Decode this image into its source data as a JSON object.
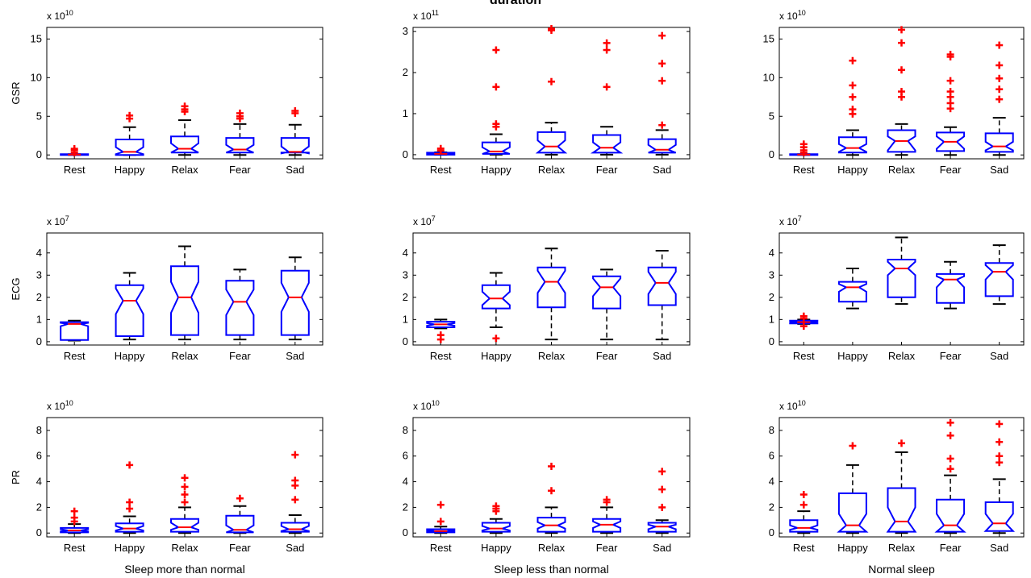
{
  "figure": {
    "title": "duration"
  },
  "chart_data": [
    {
      "type": "box",
      "panel_row": 0,
      "panel_col": 0,
      "ylabel": "GSR",
      "multiplier": "x 10",
      "exponent": "10",
      "ylim": [
        -0.5,
        16.5
      ],
      "yticks": [
        0,
        5,
        10,
        15
      ],
      "categories": [
        "Rest",
        "Happy",
        "Relax",
        "Fear",
        "Sad"
      ],
      "boxes": [
        {
          "q1": 0,
          "median": 0.05,
          "q3": 0.1,
          "n_lo": 0.02,
          "n_hi": 0.08,
          "whisker_low": 0,
          "whisker_high": 0.1,
          "outliers": [
            0.3,
            0.6,
            0.8
          ]
        },
        {
          "q1": 0,
          "median": 0.4,
          "q3": 2.0,
          "n_lo": 0.1,
          "n_hi": 1.0,
          "whisker_low": 0,
          "whisker_high": 3.6,
          "outliers": [
            4.7,
            5.1
          ]
        },
        {
          "q1": 0.3,
          "median": 0.8,
          "q3": 2.4,
          "n_lo": 0.3,
          "n_hi": 1.5,
          "whisker_low": 0,
          "whisker_high": 4.5,
          "outliers": [
            5.6,
            5.9,
            6.3
          ]
        },
        {
          "q1": 0.3,
          "median": 0.7,
          "q3": 2.2,
          "n_lo": 0.3,
          "n_hi": 1.3,
          "whisker_low": 0,
          "whisker_high": 4.0,
          "outliers": [
            4.7,
            5.0,
            5.4
          ]
        },
        {
          "q1": 0.3,
          "median": 0.4,
          "q3": 2.2,
          "n_lo": 0.2,
          "n_hi": 1.1,
          "whisker_low": 0,
          "whisker_high": 3.9,
          "outliers": [
            5.4,
            5.7
          ]
        }
      ]
    },
    {
      "type": "box",
      "panel_row": 0,
      "panel_col": 1,
      "ylabel": "",
      "multiplier": "x 10",
      "exponent": "11",
      "ylim": [
        -0.1,
        3.1
      ],
      "yticks": [
        0,
        1,
        2,
        3
      ],
      "categories": [
        "Rest",
        "Happy",
        "Relax",
        "Fear",
        "Sad"
      ],
      "boxes": [
        {
          "q1": 0,
          "median": 0.02,
          "q3": 0.05,
          "n_lo": 0.01,
          "n_hi": 0.04,
          "whisker_low": 0,
          "whisker_high": 0.06,
          "outliers": [
            0.1,
            0.15
          ]
        },
        {
          "q1": 0.02,
          "median": 0.08,
          "q3": 0.3,
          "n_lo": 0.02,
          "n_hi": 0.18,
          "whisker_low": 0,
          "whisker_high": 0.5,
          "outliers": [
            0.68,
            0.75,
            1.65,
            2.55
          ]
        },
        {
          "q1": 0.05,
          "median": 0.2,
          "q3": 0.55,
          "n_lo": 0.05,
          "n_hi": 0.35,
          "whisker_low": 0,
          "whisker_high": 0.78,
          "outliers": [
            1.78,
            3.03,
            3.07
          ]
        },
        {
          "q1": 0.05,
          "median": 0.17,
          "q3": 0.48,
          "n_lo": 0.05,
          "n_hi": 0.3,
          "whisker_low": 0,
          "whisker_high": 0.68,
          "outliers": [
            1.65,
            2.55,
            2.72
          ]
        },
        {
          "q1": 0.05,
          "median": 0.12,
          "q3": 0.38,
          "n_lo": 0.05,
          "n_hi": 0.24,
          "whisker_low": 0,
          "whisker_high": 0.6,
          "outliers": [
            0.72,
            1.8,
            2.22,
            2.9
          ]
        }
      ]
    },
    {
      "type": "box",
      "panel_row": 0,
      "panel_col": 2,
      "ylabel": "",
      "multiplier": "x 10",
      "exponent": "10",
      "ylim": [
        -0.5,
        16.5
      ],
      "yticks": [
        0,
        5,
        10,
        15
      ],
      "categories": [
        "Rest",
        "Happy",
        "Relax",
        "Fear",
        "Sad"
      ],
      "boxes": [
        {
          "q1": 0,
          "median": 0.05,
          "q3": 0.1,
          "n_lo": 0.02,
          "n_hi": 0.08,
          "whisker_low": 0,
          "whisker_high": 0.1,
          "outliers": [
            0.3,
            0.6,
            1.0,
            1.4
          ]
        },
        {
          "q1": 0.3,
          "median": 0.9,
          "q3": 2.3,
          "n_lo": 0.4,
          "n_hi": 1.4,
          "whisker_low": 0,
          "whisker_high": 3.2,
          "outliers": [
            5.3,
            5.9,
            7.5,
            9.0,
            12.2
          ]
        },
        {
          "q1": 0.4,
          "median": 1.8,
          "q3": 3.2,
          "n_lo": 0.6,
          "n_hi": 2.4,
          "whisker_low": 0,
          "whisker_high": 4.0,
          "outliers": [
            7.5,
            8.2,
            11.0,
            14.5,
            16.2
          ]
        },
        {
          "q1": 0.5,
          "median": 1.7,
          "q3": 2.9,
          "n_lo": 0.8,
          "n_hi": 2.4,
          "whisker_low": 0,
          "whisker_high": 3.6,
          "outliers": [
            6.0,
            6.7,
            7.5,
            8.2,
            9.6,
            12.7,
            13.0
          ]
        },
        {
          "q1": 0.4,
          "median": 1.1,
          "q3": 2.8,
          "n_lo": 0.6,
          "n_hi": 1.7,
          "whisker_low": 0,
          "whisker_high": 4.8,
          "outliers": [
            7.2,
            8.5,
            9.9,
            11.6,
            14.2
          ]
        }
      ]
    },
    {
      "type": "box",
      "panel_row": 1,
      "panel_col": 0,
      "ylabel": "ECG",
      "multiplier": "x 10",
      "exponent": "7",
      "ylim": [
        -0.15,
        4.9
      ],
      "yticks": [
        0,
        1,
        2,
        3,
        4
      ],
      "categories": [
        "Rest",
        "Happy",
        "Relax",
        "Fear",
        "Sad"
      ],
      "boxes": [
        {
          "q1": 0.08,
          "median": 0.8,
          "q3": 0.88,
          "n_lo": 0.7,
          "n_hi": 0.85,
          "whisker_low": 0.05,
          "whisker_high": 0.95,
          "outliers": []
        },
        {
          "q1": 0.25,
          "median": 1.85,
          "q3": 2.55,
          "n_lo": 1.25,
          "n_hi": 2.4,
          "whisker_low": 0.1,
          "whisker_high": 3.1,
          "outliers": []
        },
        {
          "q1": 0.3,
          "median": 2.0,
          "q3": 3.4,
          "n_lo": 1.3,
          "n_hi": 2.7,
          "whisker_low": 0.1,
          "whisker_high": 4.3,
          "outliers": []
        },
        {
          "q1": 0.3,
          "median": 1.8,
          "q3": 2.75,
          "n_lo": 1.2,
          "n_hi": 2.35,
          "whisker_low": 0.1,
          "whisker_high": 3.25,
          "outliers": []
        },
        {
          "q1": 0.3,
          "median": 2.0,
          "q3": 3.2,
          "n_lo": 1.35,
          "n_hi": 2.65,
          "whisker_low": 0.1,
          "whisker_high": 3.8,
          "outliers": []
        }
      ]
    },
    {
      "type": "box",
      "panel_row": 1,
      "panel_col": 1,
      "ylabel": "",
      "multiplier": "x 10",
      "exponent": "7",
      "ylim": [
        -0.15,
        4.9
      ],
      "yticks": [
        0,
        1,
        2,
        3,
        4
      ],
      "categories": [
        "Rest",
        "Happy",
        "Relax",
        "Fear",
        "Sad"
      ],
      "boxes": [
        {
          "q1": 0.65,
          "median": 0.78,
          "q3": 0.9,
          "n_lo": 0.72,
          "n_hi": 0.84,
          "whisker_low": 0.6,
          "whisker_high": 1.0,
          "outliers": [
            0.1,
            0.3
          ]
        },
        {
          "q1": 1.5,
          "median": 1.95,
          "q3": 2.55,
          "n_lo": 1.65,
          "n_hi": 2.25,
          "whisker_low": 0.65,
          "whisker_high": 3.1,
          "outliers": [
            0.15
          ]
        },
        {
          "q1": 1.55,
          "median": 2.7,
          "q3": 3.35,
          "n_lo": 2.2,
          "n_hi": 3.2,
          "whisker_low": 0.1,
          "whisker_high": 4.2,
          "outliers": []
        },
        {
          "q1": 1.5,
          "median": 2.45,
          "q3": 2.95,
          "n_lo": 2.05,
          "n_hi": 2.85,
          "whisker_low": 0.1,
          "whisker_high": 3.25,
          "outliers": []
        },
        {
          "q1": 1.65,
          "median": 2.65,
          "q3": 3.35,
          "n_lo": 2.15,
          "n_hi": 3.15,
          "whisker_low": 0.1,
          "whisker_high": 4.1,
          "outliers": []
        }
      ]
    },
    {
      "type": "box",
      "panel_row": 1,
      "panel_col": 2,
      "ylabel": "",
      "multiplier": "x 10",
      "exponent": "7",
      "ylim": [
        -0.15,
        4.9
      ],
      "yticks": [
        0,
        1,
        2,
        3,
        4
      ],
      "categories": [
        "Rest",
        "Happy",
        "Relax",
        "Fear",
        "Sad"
      ],
      "boxes": [
        {
          "q1": 0.82,
          "median": 0.88,
          "q3": 0.95,
          "n_lo": 0.85,
          "n_hi": 0.92,
          "whisker_low": 0.8,
          "whisker_high": 1.0,
          "outliers": [
            0.7,
            1.05,
            1.15
          ]
        },
        {
          "q1": 1.8,
          "median": 2.45,
          "q3": 2.7,
          "n_lo": 2.25,
          "n_hi": 2.6,
          "whisker_low": 1.5,
          "whisker_high": 3.3,
          "outliers": []
        },
        {
          "q1": 2.0,
          "median": 3.3,
          "q3": 3.7,
          "n_lo": 3.0,
          "n_hi": 3.6,
          "whisker_low": 1.7,
          "whisker_high": 4.7,
          "outliers": []
        },
        {
          "q1": 1.75,
          "median": 2.8,
          "q3": 3.05,
          "n_lo": 2.45,
          "n_hi": 2.95,
          "whisker_low": 1.5,
          "whisker_high": 3.6,
          "outliers": []
        },
        {
          "q1": 2.05,
          "median": 3.15,
          "q3": 3.55,
          "n_lo": 2.8,
          "n_hi": 3.45,
          "whisker_low": 1.7,
          "whisker_high": 4.35,
          "outliers": []
        }
      ]
    },
    {
      "type": "box",
      "panel_row": 2,
      "panel_col": 0,
      "ylabel": "PR",
      "multiplier": "x 10",
      "exponent": "10",
      "ylim": [
        -0.3,
        9.0
      ],
      "yticks": [
        0,
        2,
        4,
        6,
        8
      ],
      "categories": [
        "Rest",
        "Happy",
        "Relax",
        "Fear",
        "Sad"
      ],
      "boxes": [
        {
          "q1": 0.05,
          "median": 0.2,
          "q3": 0.4,
          "n_lo": 0.12,
          "n_hi": 0.3,
          "whisker_low": 0,
          "whisker_high": 0.7,
          "outliers": [
            0.9,
            1.2,
            1.7
          ]
        },
        {
          "q1": 0.1,
          "median": 0.35,
          "q3": 0.75,
          "n_lo": 0.2,
          "n_hi": 0.55,
          "whisker_low": 0,
          "whisker_high": 1.3,
          "outliers": [
            1.9,
            2.4,
            5.3
          ]
        },
        {
          "q1": 0.1,
          "median": 0.45,
          "q3": 1.1,
          "n_lo": 0.25,
          "n_hi": 0.8,
          "whisker_low": 0,
          "whisker_high": 2.0,
          "outliers": [
            2.4,
            3.0,
            3.6,
            4.3
          ]
        },
        {
          "q1": 0.05,
          "median": 0.25,
          "q3": 1.35,
          "n_lo": 0.05,
          "n_hi": 0.6,
          "whisker_low": 0,
          "whisker_high": 2.1,
          "outliers": [
            2.7
          ]
        },
        {
          "q1": 0.1,
          "median": 0.3,
          "q3": 0.8,
          "n_lo": 0.15,
          "n_hi": 0.55,
          "whisker_low": 0,
          "whisker_high": 1.4,
          "outliers": [
            2.6,
            3.7,
            4.1,
            6.1
          ]
        }
      ]
    },
    {
      "type": "box",
      "panel_row": 2,
      "panel_col": 1,
      "ylabel": "",
      "multiplier": "x 10",
      "exponent": "10",
      "ylim": [
        -0.3,
        9.0
      ],
      "yticks": [
        0,
        2,
        4,
        6,
        8
      ],
      "categories": [
        "Rest",
        "Happy",
        "Relax",
        "Fear",
        "Sad"
      ],
      "boxes": [
        {
          "q1": 0.05,
          "median": 0.15,
          "q3": 0.3,
          "n_lo": 0.1,
          "n_hi": 0.22,
          "whisker_low": 0,
          "whisker_high": 0.5,
          "outliers": [
            0.9,
            2.2
          ]
        },
        {
          "q1": 0.1,
          "median": 0.35,
          "q3": 0.8,
          "n_lo": 0.2,
          "n_hi": 0.55,
          "whisker_low": 0,
          "whisker_high": 1.1,
          "outliers": [
            1.7,
            1.9,
            2.1
          ]
        },
        {
          "q1": 0.1,
          "median": 0.6,
          "q3": 1.2,
          "n_lo": 0.35,
          "n_hi": 0.85,
          "whisker_low": 0,
          "whisker_high": 2.0,
          "outliers": [
            3.3,
            5.2
          ]
        },
        {
          "q1": 0.1,
          "median": 0.65,
          "q3": 1.1,
          "n_lo": 0.4,
          "n_hi": 0.9,
          "whisker_low": 0,
          "whisker_high": 2.0,
          "outliers": [
            2.4,
            2.6
          ]
        },
        {
          "q1": 0.1,
          "median": 0.5,
          "q3": 0.8,
          "n_lo": 0.3,
          "n_hi": 0.65,
          "whisker_low": 0,
          "whisker_high": 1.0,
          "outliers": [
            2.0,
            3.4,
            4.8
          ]
        }
      ]
    },
    {
      "type": "box",
      "panel_row": 2,
      "panel_col": 2,
      "ylabel": "",
      "multiplier": "x 10",
      "exponent": "10",
      "ylim": [
        -0.3,
        9.0
      ],
      "yticks": [
        0,
        2,
        4,
        6,
        8
      ],
      "categories": [
        "Rest",
        "Happy",
        "Relax",
        "Fear",
        "Sad"
      ],
      "boxes": [
        {
          "q1": 0.1,
          "median": 0.4,
          "q3": 1.0,
          "n_lo": 0.25,
          "n_hi": 0.6,
          "whisker_low": 0,
          "whisker_high": 1.7,
          "outliers": [
            2.2,
            3.0
          ]
        },
        {
          "q1": 0.1,
          "median": 0.6,
          "q3": 3.1,
          "n_lo": 0.1,
          "n_hi": 1.5,
          "whisker_low": 0,
          "whisker_high": 5.3,
          "outliers": [
            6.8
          ]
        },
        {
          "q1": 0.1,
          "median": 0.9,
          "q3": 3.5,
          "n_lo": 0.1,
          "n_hi": 2.0,
          "whisker_low": 0,
          "whisker_high": 6.3,
          "outliers": [
            7.0
          ]
        },
        {
          "q1": 0.1,
          "median": 0.6,
          "q3": 2.6,
          "n_lo": 0.1,
          "n_hi": 1.5,
          "whisker_low": 0,
          "whisker_high": 4.5,
          "outliers": [
            5.0,
            5.8,
            7.6,
            8.6
          ]
        },
        {
          "q1": 0.15,
          "median": 0.75,
          "q3": 2.4,
          "n_lo": 0.15,
          "n_hi": 1.5,
          "whisker_low": 0,
          "whisker_high": 4.2,
          "outliers": [
            5.5,
            6.0,
            7.1,
            8.5
          ]
        }
      ]
    }
  ],
  "column_labels": [
    "Sleep more than normal",
    "Sleep less than normal",
    "Normal sleep"
  ],
  "colors": {
    "box": "#0000ff",
    "median": "#ff0000",
    "outlier": "#ff0000",
    "whisker": "#000000",
    "axis": "#000000"
  }
}
